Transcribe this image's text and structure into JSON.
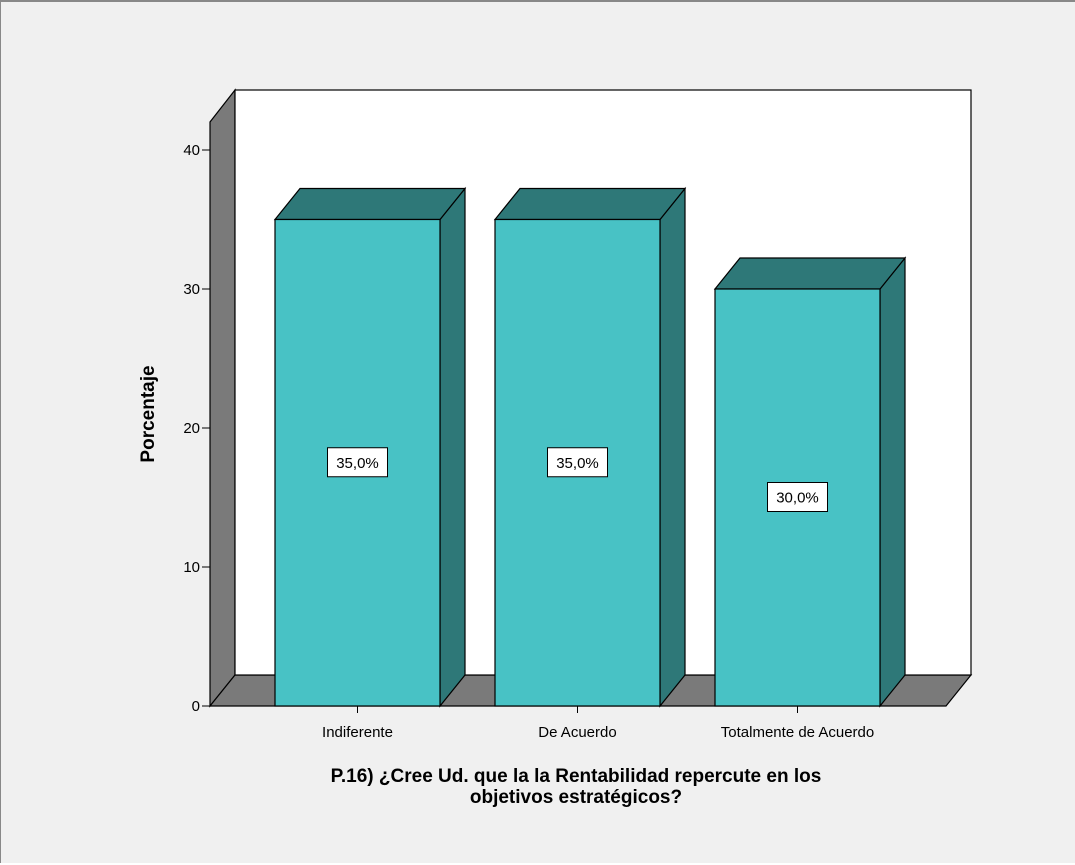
{
  "chart_data": {
    "type": "bar",
    "categories": [
      "Indiferente",
      "De Acuerdo",
      "Totalmente de Acuerdo"
    ],
    "values": [
      35.0,
      35.0,
      30.0
    ],
    "data_labels": [
      "35,0%",
      "35,0%",
      "30,0%"
    ],
    "title": "",
    "xlabel_lines": [
      "P.16) ¿Cree Ud. que la  la Rentabilidad  repercute en los",
      "objetivos estratégicos?"
    ],
    "ylabel": "Porcentaje",
    "ylim": [
      0,
      40
    ],
    "yticks": [
      0,
      10,
      20,
      30,
      40
    ],
    "grid": false,
    "legend": "none",
    "style": "3d",
    "colors": {
      "bar_front": "#48c2c5",
      "bar_side": "#2e7878",
      "wall": "#7a7a7a",
      "plot_bg": "#ffffff",
      "frame_bg": "#f0f0f0"
    }
  }
}
